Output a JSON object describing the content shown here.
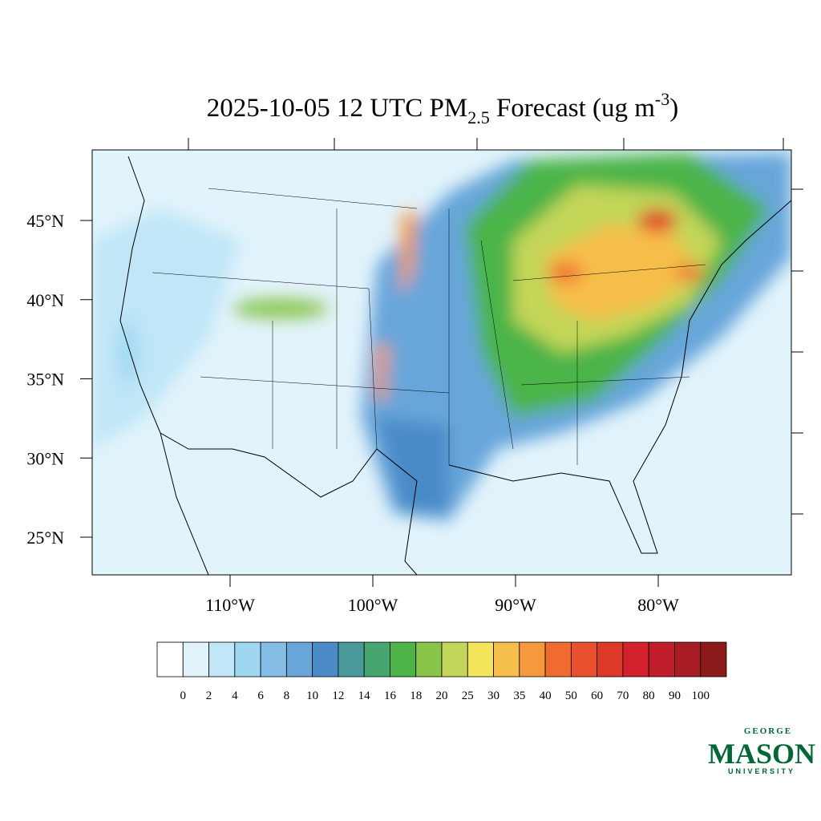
{
  "map": {
    "title": {
      "main": "2025-10-05 12 UTC PM",
      "sub": "2.5",
      "middle": " Forecast (ug m",
      "sup": "-3",
      "end": ")"
    },
    "lat_ticks": [
      {
        "value": 45,
        "label": "45°N"
      },
      {
        "value": 40,
        "label": "40°N"
      },
      {
        "value": 35,
        "label": "35°N"
      },
      {
        "value": 30,
        "label": "30°N"
      },
      {
        "value": 25,
        "label": "25°N"
      }
    ],
    "lon_ticks": [
      {
        "value": -110,
        "label": "110°W"
      },
      {
        "value": -100,
        "label": "100°W"
      },
      {
        "value": -90,
        "label": "90°W"
      },
      {
        "value": -80,
        "label": "80°W"
      }
    ],
    "colorbar": {
      "colors": [
        "#ffffff",
        "#e1f3fb",
        "#c0e6f7",
        "#9fd7f3",
        "#84bde5",
        "#68a6da",
        "#4a8bc7",
        "#4a9a9b",
        "#47a670",
        "#4cb449",
        "#89c44b",
        "#c3d659",
        "#f5e55a",
        "#f6be4a",
        "#f5983e",
        "#f06b30",
        "#e8502e",
        "#de3a29",
        "#d3222e",
        "#bf1e2a",
        "#a81c23",
        "#8c1a1b"
      ],
      "levels": [
        0,
        2,
        4,
        6,
        8,
        10,
        12,
        14,
        16,
        18,
        20,
        25,
        30,
        35,
        40,
        50,
        60,
        70,
        80,
        90,
        100
      ]
    },
    "logo": {
      "top": "GEORGE",
      "name": "MASON",
      "bottom": "UNIVERSITY"
    }
  }
}
